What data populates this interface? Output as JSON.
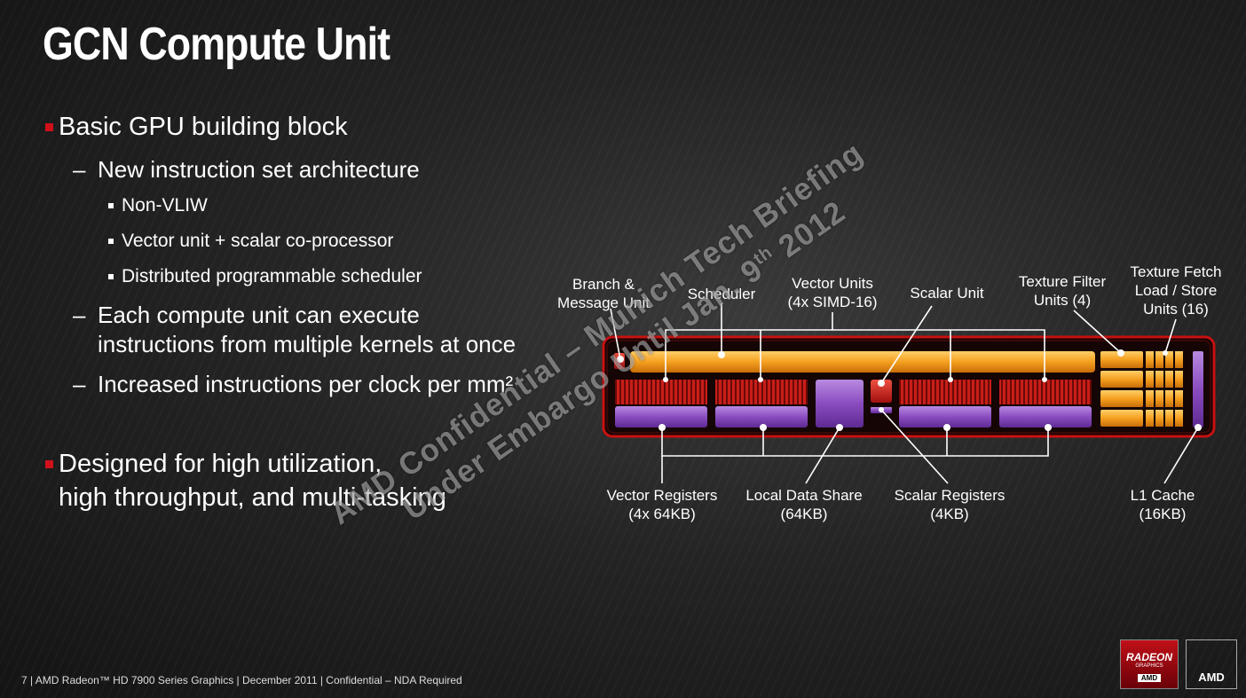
{
  "title": "GCN Compute Unit",
  "bullets": {
    "b1": "Basic GPU building block",
    "b1_1": "New instruction set architecture",
    "b1_1_1": "Non-VLIW",
    "b1_1_2": "Vector unit + scalar co-processor",
    "b1_1_3": "Distributed programmable scheduler",
    "b1_2_a": "Each compute unit can execute",
    "b1_2_b": "instructions from multiple kernels at once",
    "b1_3": "Increased instructions per clock per mm²",
    "b2_a": "Designed for high utilization,",
    "b2_b": "high throughput, and multi-tasking"
  },
  "diagram": {
    "labels": {
      "branch_a": "Branch &",
      "branch_b": "Message Unit",
      "scheduler": "Scheduler",
      "vector_units_a": "Vector Units",
      "vector_units_b": "(4x SIMD-16)",
      "scalar_unit": "Scalar Unit",
      "texture_filter_a": "Texture Filter",
      "texture_filter_b": "Units (4)",
      "texture_fetch_a": "Texture Fetch",
      "texture_fetch_b": "Load / Store",
      "texture_fetch_c": "Units (16)",
      "vector_registers_a": "Vector Registers",
      "vector_registers_b": "(4x 64KB)",
      "lds_a": "Local Data Share",
      "lds_b": "(64KB)",
      "scalar_registers_a": "Scalar Registers",
      "scalar_registers_b": "(4KB)",
      "l1_a": "L1 Cache",
      "l1_b": "(16KB)"
    },
    "colors": {
      "orange": "#f5a020",
      "red": "#c81e18",
      "purple": "#8a4cc0",
      "frame": "#c81010"
    }
  },
  "watermark": {
    "line1": "AMD Confidential – Munich Tech Briefing",
    "line2": "Under Embargo Until Jan. 9",
    "line2_sup": "th",
    "line2_end": " 2012"
  },
  "footer": "7  |  AMD Radeon™ HD 7900 Series Graphics  |  December 2011  |  Confidential – NDA Required",
  "logos": {
    "radeon": "RADEON",
    "radeon_sub": "GRAPHICS",
    "radeon_amd": "AMD",
    "amd": "AMD"
  }
}
